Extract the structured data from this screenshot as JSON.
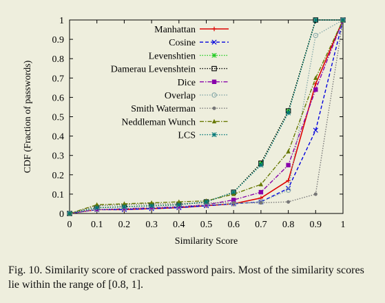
{
  "chart_data": {
    "type": "line",
    "xlabel": "Similarity Score",
    "ylabel": "CDF (Fraction of passwords)",
    "xlim": [
      0,
      1
    ],
    "ylim": [
      0,
      1
    ],
    "x_ticks": [
      "0",
      "0.1",
      "0.2",
      "0.3",
      "0.4",
      "0.5",
      "0.6",
      "0.7",
      "0.8",
      "0.9",
      "1"
    ],
    "y_ticks": [
      "0",
      "0.1",
      "0.2",
      "0.3",
      "0.4",
      "0.5",
      "0.6",
      "0.7",
      "0.8",
      "0.9",
      "1"
    ],
    "grid": false,
    "legend_position": "top-center",
    "x": [
      0,
      0.1,
      0.2,
      0.3,
      0.4,
      0.5,
      0.6,
      0.7,
      0.8,
      0.9,
      1.0
    ],
    "series": [
      {
        "name": "Manhattan",
        "color": "#dd0000",
        "dash": "solid",
        "marker": "plus",
        "values": [
          0,
          0.02,
          0.02,
          0.025,
          0.03,
          0.04,
          0.05,
          0.08,
          0.17,
          0.67,
          1.0
        ]
      },
      {
        "name": "Cosine",
        "color": "#0000dd",
        "dash": "dashed",
        "marker": "cross",
        "values": [
          0,
          0.02,
          0.02,
          0.025,
          0.03,
          0.04,
          0.05,
          0.06,
          0.13,
          0.43,
          1.0
        ]
      },
      {
        "name": "Levenshtien",
        "color": "#22cc22",
        "dash": "dotted",
        "marker": "asterisk",
        "values": [
          0,
          0.03,
          0.035,
          0.04,
          0.045,
          0.06,
          0.11,
          0.26,
          0.53,
          1.0,
          1.0
        ]
      },
      {
        "name": "Damerau Levenshtein",
        "color": "#000000",
        "dash": "dotted",
        "marker": "square",
        "values": [
          0,
          0.03,
          0.035,
          0.04,
          0.045,
          0.06,
          0.11,
          0.26,
          0.53,
          1.0,
          1.0
        ]
      },
      {
        "name": "Dice",
        "color": "#8800aa",
        "dash": "dashdot",
        "marker": "filled-square",
        "values": [
          0,
          0.02,
          0.025,
          0.03,
          0.035,
          0.045,
          0.07,
          0.11,
          0.25,
          0.64,
          1.0
        ]
      },
      {
        "name": "Overlap",
        "color": "#88aaaa",
        "dash": "dotted",
        "marker": "circle",
        "values": [
          0,
          0.02,
          0.025,
          0.03,
          0.035,
          0.045,
          0.05,
          0.06,
          0.12,
          0.92,
          1.0
        ]
      },
      {
        "name": "Smith Waterman",
        "color": "#777777",
        "dash": "dotted",
        "marker": "filled-circle",
        "values": [
          0,
          0.04,
          0.045,
          0.05,
          0.05,
          0.055,
          0.055,
          0.055,
          0.06,
          0.1,
          1.0
        ]
      },
      {
        "name": "Neddleman Wunch",
        "color": "#667700",
        "dash": "dashdot",
        "marker": "triangle",
        "values": [
          0,
          0.045,
          0.05,
          0.055,
          0.06,
          0.065,
          0.1,
          0.15,
          0.32,
          0.7,
          1.0
        ]
      },
      {
        "name": "LCS",
        "color": "#007777",
        "dash": "dotted",
        "marker": "star",
        "values": [
          0,
          0.03,
          0.035,
          0.04,
          0.045,
          0.06,
          0.11,
          0.25,
          0.52,
          1.0,
          1.0
        ]
      }
    ]
  },
  "caption": {
    "text": "Fig. 10.   Similarity score of cracked password pairs. Most of the similarity scores lie within the range of [0.8, 1]."
  }
}
